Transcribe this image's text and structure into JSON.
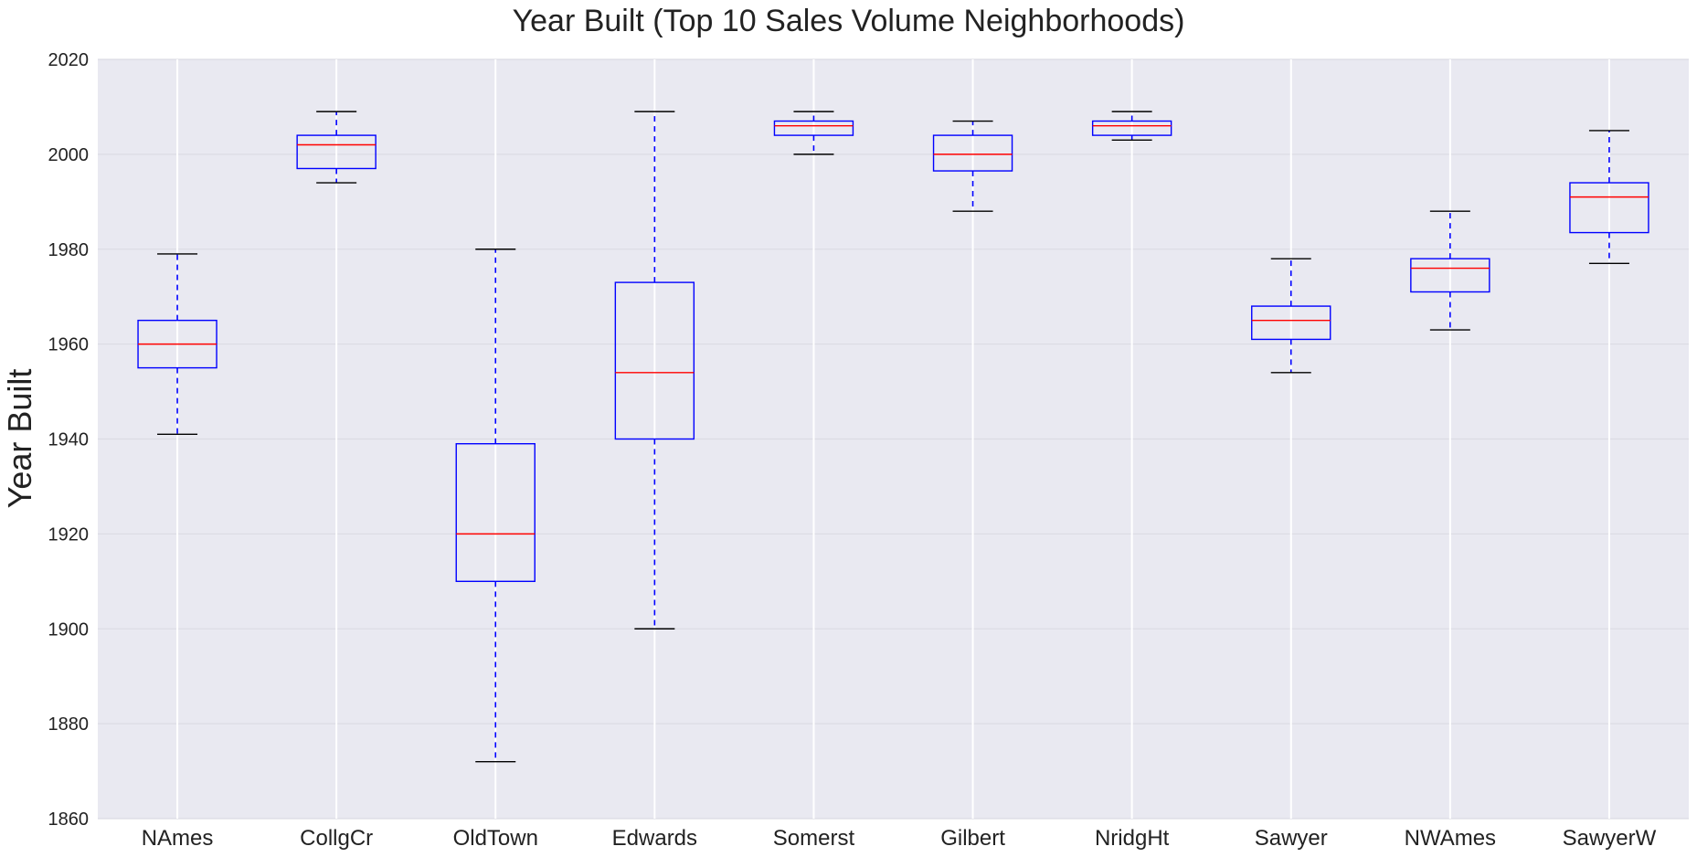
{
  "chart_data": {
    "type": "box",
    "title": "Year Built (Top 10 Sales Volume Neighborhoods)",
    "xlabel": "",
    "ylabel": "Year Built",
    "ylim": [
      1860,
      2020
    ],
    "yticks": [
      "1860",
      "1880",
      "1900",
      "1920",
      "1940",
      "1960",
      "1980",
      "2000",
      "2020"
    ],
    "categories": [
      "NAmes",
      "CollgCr",
      "OldTown",
      "Edwards",
      "Somerst",
      "Gilbert",
      "NridgHt",
      "Sawyer",
      "NWAmes",
      "SawyerW"
    ],
    "boxes": [
      {
        "whisker_low": 1941,
        "q1": 1955,
        "median": 1960,
        "q3": 1965,
        "whisker_high": 1979
      },
      {
        "whisker_low": 1994,
        "q1": 1997,
        "median": 2002,
        "q3": 2004,
        "whisker_high": 2009
      },
      {
        "whisker_low": 1872,
        "q1": 1910,
        "median": 1920,
        "q3": 1939,
        "whisker_high": 1980
      },
      {
        "whisker_low": 1900,
        "q1": 1940,
        "median": 1954,
        "q3": 1973,
        "whisker_high": 2009
      },
      {
        "whisker_low": 2000,
        "q1": 2004,
        "median": 2006,
        "q3": 2007,
        "whisker_high": 2009
      },
      {
        "whisker_low": 1988,
        "q1": 1996.5,
        "median": 2000,
        "q3": 2004,
        "whisker_high": 2007
      },
      {
        "whisker_low": 2003,
        "q1": 2004,
        "median": 2006,
        "q3": 2007,
        "whisker_high": 2009
      },
      {
        "whisker_low": 1954,
        "q1": 1961,
        "median": 1965,
        "q3": 1968,
        "whisker_high": 1978
      },
      {
        "whisker_low": 1963,
        "q1": 1971,
        "median": 1976,
        "q3": 1978,
        "whisker_high": 1988
      },
      {
        "whisker_low": 1977,
        "q1": 1983.5,
        "median": 1991,
        "q3": 1994,
        "whisker_high": 2005
      }
    ],
    "grid": true,
    "colors": {
      "plot_background": "#e9e9f1",
      "gridline": "#ffffff",
      "box": "#0000ff",
      "whisker": "#0000ff",
      "cap": "#000000",
      "median": "#ff0000",
      "text": "#222222"
    }
  }
}
